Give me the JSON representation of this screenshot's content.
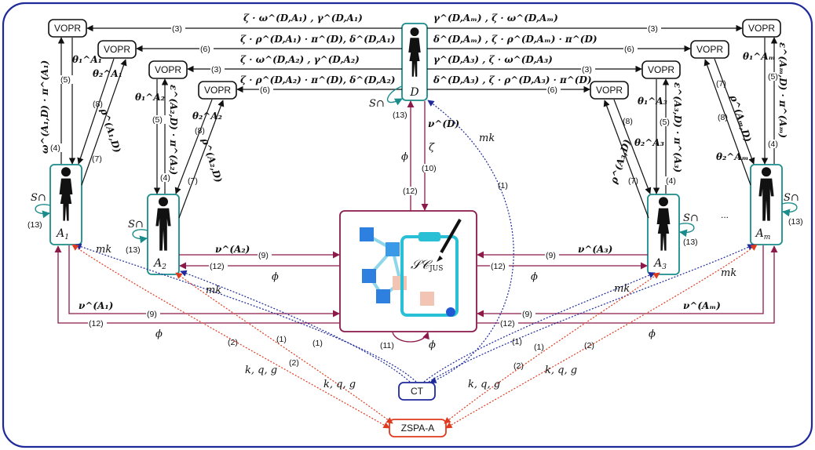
{
  "nodes": {
    "vopr": "VOPR",
    "ct": "CT",
    "zspa": "ZSPA-A",
    "contract": "𝒮𝒞",
    "contract_sub": "JUS",
    "dealer": "D",
    "a1": "A",
    "a1_sub": "1",
    "a2": "A",
    "a2_sub": "2",
    "a3": "A",
    "a3_sub": "3",
    "am": "A",
    "am_sub": "m",
    "ellipsis": "..."
  },
  "top_labels": {
    "r1_left": "ζ · ω^(D,A₁)     ,     γ^(D,A₁)",
    "r2_left": "ζ · ρ^(D,A₁) · π^(D), δ^(D,A₁)",
    "r3_left": "ζ · ω^(D,A₂)     ,     γ^(D,A₂)",
    "r4_left": "ζ · ρ^(D,A₂) · π^(D), δ^(D,A₂)",
    "r1_right": "γ^(D,Aₘ) , ζ · ω^(D,Aₘ)",
    "r2_right": "δ^(D,Aₘ) , ζ · ρ^(D,Aₘ) · π^(D)",
    "r3_right": "γ^(D,A₃) , ζ · ω^(D,A₃)",
    "r4_right": "δ^(D,A₃) , ζ · ρ^(D,A₃) · π^(D)"
  },
  "side_labels": {
    "a1_omega": "ω^(A₁,D) · π^(A₁)",
    "a1_theta1": "θ₁^A₁",
    "a1_theta2": "θ₂^A₁",
    "a1_rho": "ρ^(A₁,D)",
    "a2_theta1": "θ₁^A₂",
    "a2_theta2": "θ₂^A₂",
    "a2_eps": "ε^(A₂,D) · π^(A₂)",
    "a2_rho": "ρ^(A₂,D)",
    "a3_theta1": "θ₁^A₃",
    "a3_theta2": "θ₂^A₃",
    "a3_eps": "ε^(A₃,D) · π^(A₃)",
    "a3_rho": "ρ^(A₃,D)",
    "am_theta1": "θ₁^Aₘ",
    "am_theta2": "θ₂^Aₘ",
    "am_eps": "ε^(Aₘ,D) · π^(Aₘ)",
    "am_rho": "ρ^(Aₘ,D)",
    "d_nu": "ν^(D)",
    "phi": "ϕ",
    "zeta": "ζ",
    "s_cap": "S∩",
    "mk": "mk",
    "kqg": "k, q, g",
    "nu_a1": "ν^(A₁)",
    "nu_a2": "ν^(A₂)",
    "nu_a3": "ν^(A₃)",
    "nu_am": "ν^(Aₘ)"
  },
  "steps": {
    "s1": "(1)",
    "s2": "(2)",
    "s3": "(3)",
    "s4": "(4)",
    "s5": "(5)",
    "s6": "(6)",
    "s7": "(7)",
    "s8": "(8)",
    "s9": "(9)",
    "s10": "(10)",
    "s11": "(11)",
    "s12": "(12)",
    "s13": "(13)"
  },
  "colors": {
    "frame": "#1f2a9a",
    "teal": "#1a8c8c",
    "maroon": "#8b1a4a",
    "blue_dotted": "#1f2a9a",
    "red_dotted": "#e03a1e",
    "ct_border": "#1f2a9a",
    "zspa_border": "#e03a1e"
  }
}
